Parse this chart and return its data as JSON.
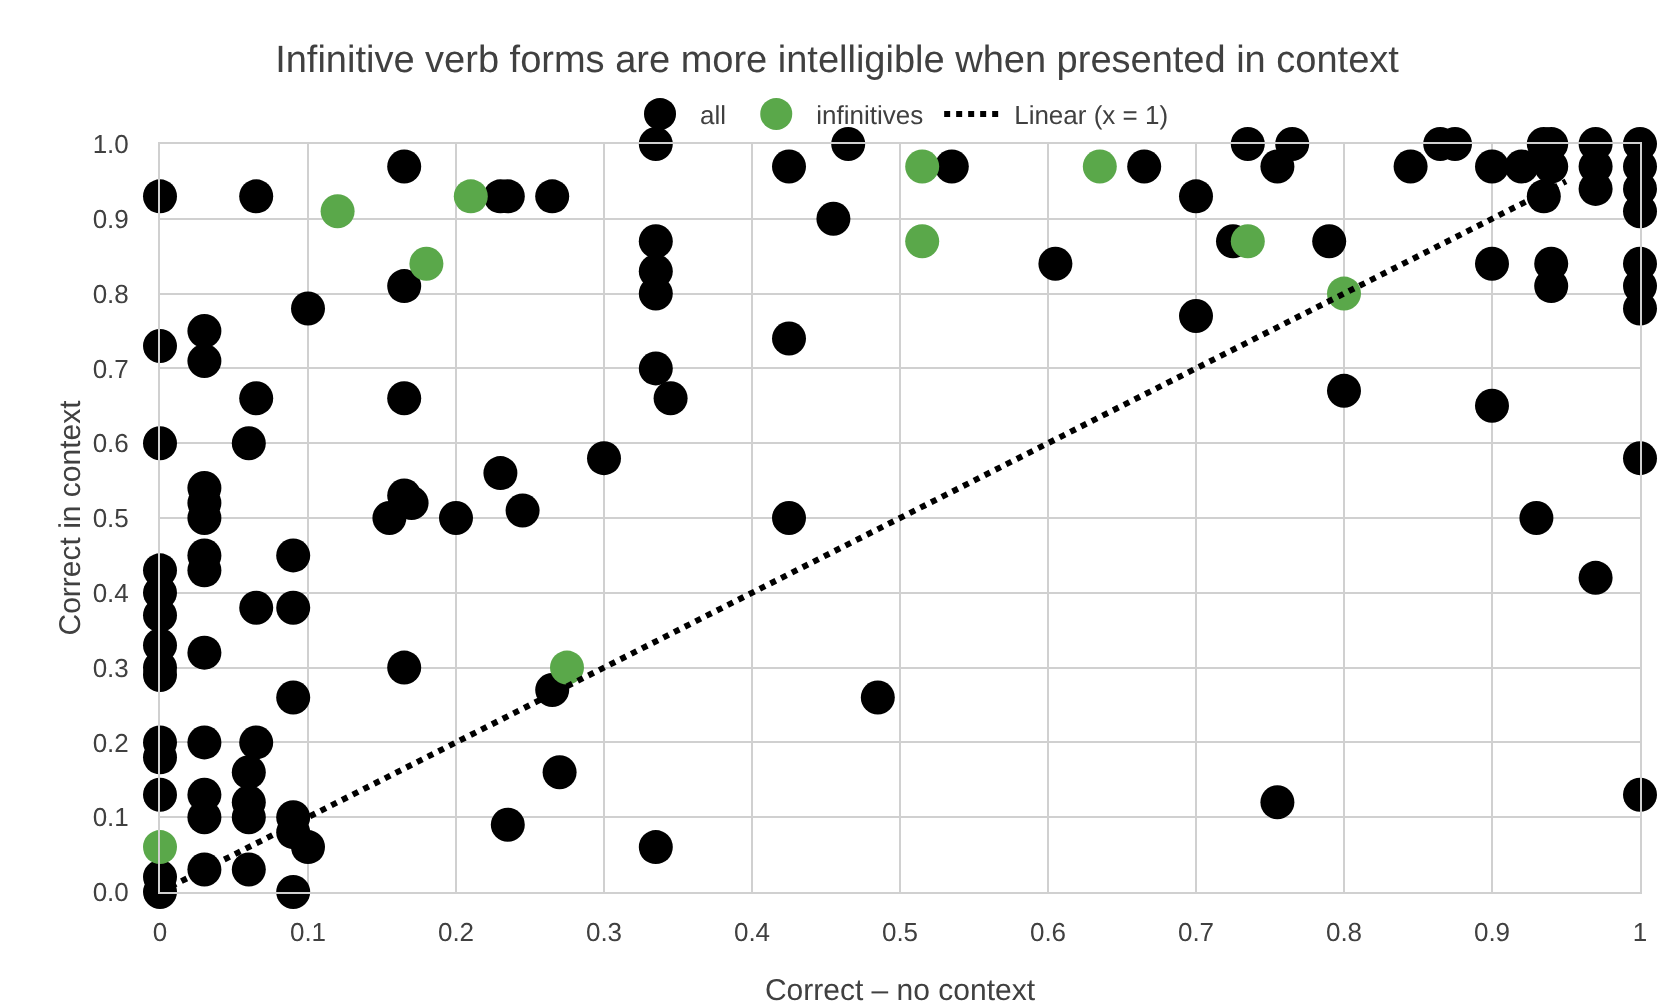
{
  "chart_data": {
    "type": "scatter",
    "title": "Infinitive verb forms are more intelligible when presented in context",
    "xlabel": "Correct – no context",
    "ylabel": "Correct in context",
    "xlim": [
      0,
      1
    ],
    "ylim": [
      0,
      1
    ],
    "xticks": [
      0,
      0.1,
      0.2,
      0.3,
      0.4,
      0.5,
      0.6,
      0.7,
      0.8,
      0.9,
      1
    ],
    "yticks": [
      {
        "value": 0,
        "label": "0.0"
      },
      0.1,
      0.2,
      0.3,
      0.4,
      0.5,
      0.6,
      0.7,
      0.8,
      0.9,
      {
        "value": 1,
        "label": "1.0"
      }
    ],
    "grid": true,
    "legend": "top",
    "marker": "circle",
    "series": [
      {
        "name": "all",
        "color": "#000000",
        "x": [
          0,
          0,
          0,
          0,
          0,
          0,
          0,
          0,
          0,
          0,
          0,
          0,
          0,
          0,
          0.03,
          0.03,
          0.03,
          0.03,
          0.03,
          0.03,
          0.03,
          0.03,
          0.03,
          0.03,
          0.03,
          0.03,
          0.065,
          0.065,
          0.06,
          0.065,
          0.065,
          0.06,
          0.06,
          0.06,
          0.06,
          0.09,
          0.09,
          0.09,
          0.09,
          0.09,
          0.09,
          0.1,
          0.1,
          0.155,
          0.165,
          0.165,
          0.165,
          0.165,
          0.17,
          0.165,
          0.2,
          0.23,
          0.23,
          0.235,
          0.235,
          0.245,
          0.265,
          0.265,
          0.27,
          0.3,
          0.335,
          0.335,
          0.335,
          0.335,
          0.335,
          0.335,
          0.345,
          0.425,
          0.425,
          0.425,
          0.455,
          0.465,
          0.485,
          0.535,
          0.605,
          0.665,
          0.7,
          0.7,
          0.725,
          0.735,
          0.755,
          0.755,
          0.765,
          0.79,
          0.8,
          0.845,
          0.865,
          0.875,
          0.9,
          0.9,
          0.9,
          0.92,
          0.93,
          0.935,
          0.935,
          0.94,
          0.94,
          0.94,
          0.94,
          0.97,
          0.97,
          0.97,
          0.97,
          1,
          1,
          1,
          1,
          1,
          1,
          1,
          1,
          1
        ],
        "values": [
          0.93,
          0.73,
          0.6,
          0.43,
          0.4,
          0.37,
          0.33,
          0.3,
          0.29,
          0.2,
          0.18,
          0.13,
          0.02,
          0,
          0.75,
          0.71,
          0.54,
          0.52,
          0.5,
          0.45,
          0.43,
          0.32,
          0.2,
          0.13,
          0.1,
          0.03,
          0.93,
          0.66,
          0.6,
          0.38,
          0.2,
          0.16,
          0.12,
          0.1,
          0.03,
          0.45,
          0.38,
          0.26,
          0.1,
          0.08,
          0,
          0.78,
          0.06,
          0.5,
          0.97,
          0.81,
          0.66,
          0.53,
          0.52,
          0.3,
          0.5,
          0.93,
          0.56,
          0.93,
          0.09,
          0.51,
          0.93,
          0.27,
          0.16,
          0.58,
          1,
          0.87,
          0.83,
          0.8,
          0.7,
          0.06,
          0.66,
          0.97,
          0.74,
          0.5,
          0.9,
          1,
          0.26,
          0.97,
          0.84,
          0.97,
          0.93,
          0.77,
          0.87,
          1,
          0.97,
          0.12,
          1,
          0.87,
          0.67,
          0.97,
          1,
          1,
          0.97,
          0.84,
          0.65,
          0.97,
          0.5,
          1,
          0.93,
          1,
          0.97,
          0.84,
          0.81,
          1,
          0.97,
          0.94,
          0.42,
          1,
          0.97,
          0.94,
          0.91,
          0.84,
          0.81,
          0.78,
          0.58,
          0.13
        ]
      },
      {
        "name": "infinitives",
        "color": "#5aa84a",
        "x": [
          0,
          0.12,
          0.18,
          0.21,
          0.275,
          0.515,
          0.515,
          0.635,
          0.735,
          0.8
        ],
        "values": [
          0.06,
          0.91,
          0.84,
          0.93,
          0.3,
          0.97,
          0.87,
          0.97,
          0.87,
          0.8
        ]
      },
      {
        "name": "Linear (x = 1)",
        "type": "line",
        "line_style": "dotted",
        "marker": "none",
        "color": "#000000",
        "x": [
          0,
          0.95
        ],
        "values": [
          0,
          0.95
        ]
      }
    ]
  }
}
